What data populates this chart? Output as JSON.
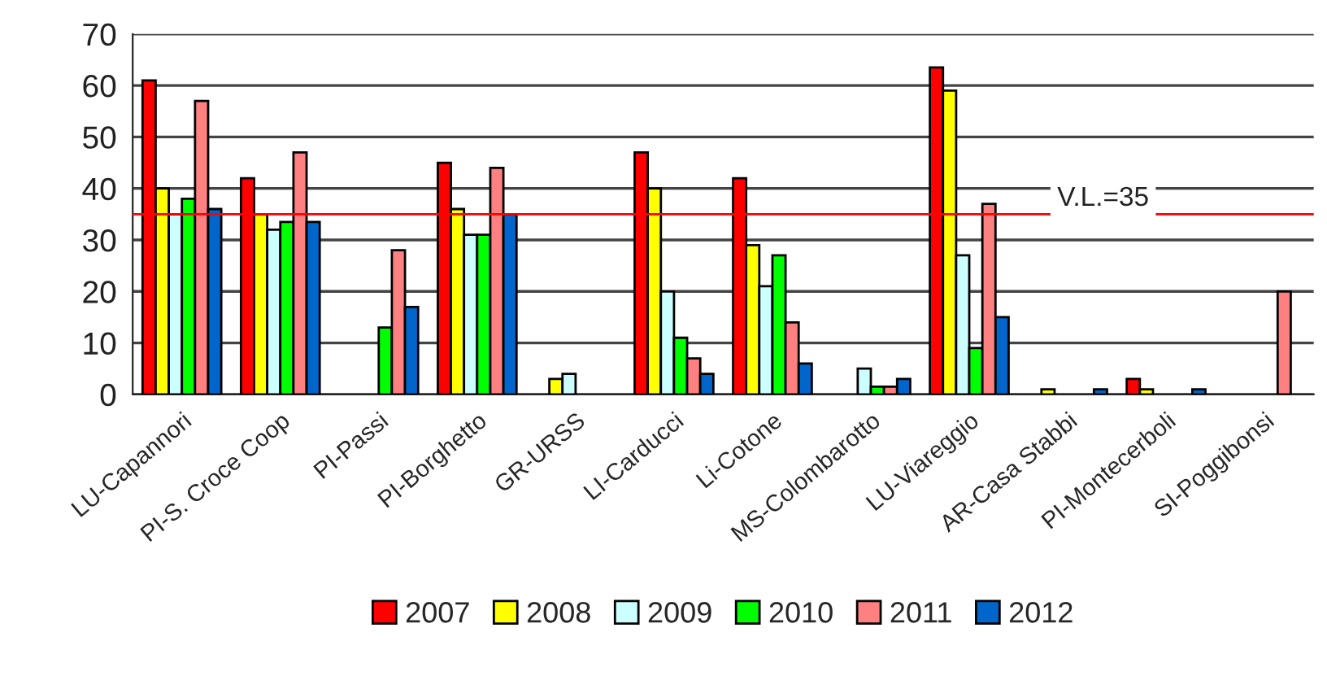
{
  "chart_data": {
    "type": "bar",
    "categories": [
      "LU-Capannori",
      "PI-S. Croce Coop",
      "PI-Passi",
      "PI-Borghetto",
      "GR-URSS",
      "LI-Carducci",
      "Li-Cotone",
      "MS-Colombarotto",
      "LU-Viareggio",
      "AR-Casa Stabbi",
      "PI-Montecerboli",
      "SI-Poggibonsi"
    ],
    "series": [
      {
        "name": "2007",
        "color": "#ff0000",
        "values": [
          61,
          42,
          null,
          45,
          null,
          47,
          42,
          null,
          63.5,
          null,
          3,
          null
        ]
      },
      {
        "name": "2008",
        "color": "#ffff00",
        "values": [
          40,
          35,
          null,
          36,
          3,
          40,
          29,
          null,
          59,
          1,
          1,
          null
        ]
      },
      {
        "name": "2009",
        "color": "#ccffff",
        "values": [
          35,
          32,
          null,
          31,
          4,
          20,
          21,
          5,
          27,
          null,
          null,
          null
        ]
      },
      {
        "name": "2010",
        "color": "#00ff00",
        "values": [
          38,
          33.5,
          13,
          31,
          null,
          11,
          27,
          1.5,
          9,
          null,
          null,
          null
        ]
      },
      {
        "name": "2011",
        "color": "#ff8080",
        "values": [
          57,
          47,
          28,
          44,
          null,
          7,
          14,
          1.5,
          37,
          null,
          null,
          20
        ]
      },
      {
        "name": "2012",
        "color": "#0066cc",
        "values": [
          36,
          33.5,
          17,
          35,
          null,
          4,
          6,
          3,
          15,
          1,
          1,
          null
        ]
      }
    ],
    "ylim": [
      0,
      70
    ],
    "yticks": [
      0,
      10,
      20,
      30,
      40,
      50,
      60,
      70
    ],
    "grid": "y",
    "legend": "bottom",
    "ref_lines": [
      {
        "axis": "y",
        "value": 35,
        "label": "V.L.=35",
        "color": "#ff0000"
      }
    ]
  }
}
